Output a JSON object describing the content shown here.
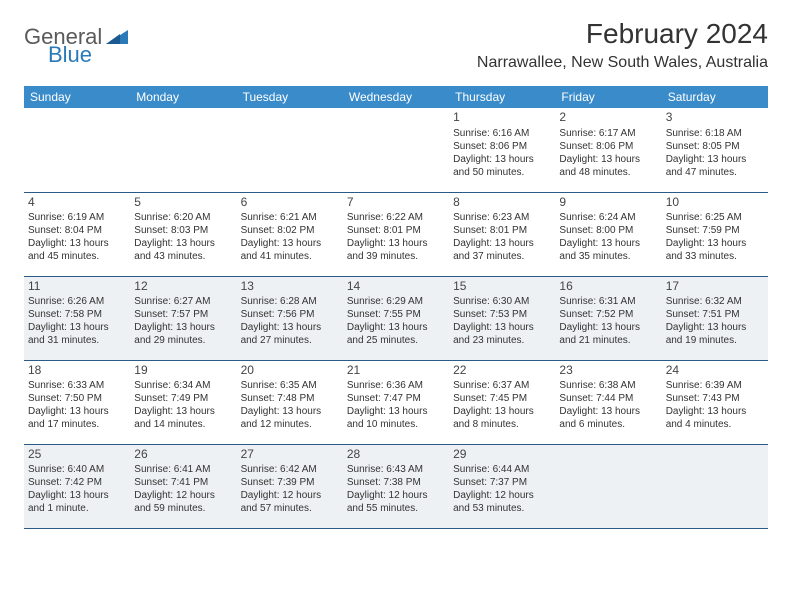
{
  "logo": {
    "part1": "General",
    "part2": "Blue"
  },
  "title": "February 2024",
  "location": "Narrawallee, New South Wales, Australia",
  "colors": {
    "header_bg": "#3a8bc9",
    "header_text": "#ffffff",
    "alt_row_bg": "#eef1f3",
    "rule": "#2a5a8a",
    "logo_accent": "#2a7ab9"
  },
  "day_headers": [
    "Sunday",
    "Monday",
    "Tuesday",
    "Wednesday",
    "Thursday",
    "Friday",
    "Saturday"
  ],
  "weeks": [
    {
      "alt": false,
      "days": [
        null,
        null,
        null,
        null,
        {
          "n": "1",
          "sr": "Sunrise: 6:16 AM",
          "ss": "Sunset: 8:06 PM",
          "d1": "Daylight: 13 hours",
          "d2": "and 50 minutes."
        },
        {
          "n": "2",
          "sr": "Sunrise: 6:17 AM",
          "ss": "Sunset: 8:06 PM",
          "d1": "Daylight: 13 hours",
          "d2": "and 48 minutes."
        },
        {
          "n": "3",
          "sr": "Sunrise: 6:18 AM",
          "ss": "Sunset: 8:05 PM",
          "d1": "Daylight: 13 hours",
          "d2": "and 47 minutes."
        }
      ]
    },
    {
      "alt": false,
      "days": [
        {
          "n": "4",
          "sr": "Sunrise: 6:19 AM",
          "ss": "Sunset: 8:04 PM",
          "d1": "Daylight: 13 hours",
          "d2": "and 45 minutes."
        },
        {
          "n": "5",
          "sr": "Sunrise: 6:20 AM",
          "ss": "Sunset: 8:03 PM",
          "d1": "Daylight: 13 hours",
          "d2": "and 43 minutes."
        },
        {
          "n": "6",
          "sr": "Sunrise: 6:21 AM",
          "ss": "Sunset: 8:02 PM",
          "d1": "Daylight: 13 hours",
          "d2": "and 41 minutes."
        },
        {
          "n": "7",
          "sr": "Sunrise: 6:22 AM",
          "ss": "Sunset: 8:01 PM",
          "d1": "Daylight: 13 hours",
          "d2": "and 39 minutes."
        },
        {
          "n": "8",
          "sr": "Sunrise: 6:23 AM",
          "ss": "Sunset: 8:01 PM",
          "d1": "Daylight: 13 hours",
          "d2": "and 37 minutes."
        },
        {
          "n": "9",
          "sr": "Sunrise: 6:24 AM",
          "ss": "Sunset: 8:00 PM",
          "d1": "Daylight: 13 hours",
          "d2": "and 35 minutes."
        },
        {
          "n": "10",
          "sr": "Sunrise: 6:25 AM",
          "ss": "Sunset: 7:59 PM",
          "d1": "Daylight: 13 hours",
          "d2": "and 33 minutes."
        }
      ]
    },
    {
      "alt": true,
      "days": [
        {
          "n": "11",
          "sr": "Sunrise: 6:26 AM",
          "ss": "Sunset: 7:58 PM",
          "d1": "Daylight: 13 hours",
          "d2": "and 31 minutes."
        },
        {
          "n": "12",
          "sr": "Sunrise: 6:27 AM",
          "ss": "Sunset: 7:57 PM",
          "d1": "Daylight: 13 hours",
          "d2": "and 29 minutes."
        },
        {
          "n": "13",
          "sr": "Sunrise: 6:28 AM",
          "ss": "Sunset: 7:56 PM",
          "d1": "Daylight: 13 hours",
          "d2": "and 27 minutes."
        },
        {
          "n": "14",
          "sr": "Sunrise: 6:29 AM",
          "ss": "Sunset: 7:55 PM",
          "d1": "Daylight: 13 hours",
          "d2": "and 25 minutes."
        },
        {
          "n": "15",
          "sr": "Sunrise: 6:30 AM",
          "ss": "Sunset: 7:53 PM",
          "d1": "Daylight: 13 hours",
          "d2": "and 23 minutes."
        },
        {
          "n": "16",
          "sr": "Sunrise: 6:31 AM",
          "ss": "Sunset: 7:52 PM",
          "d1": "Daylight: 13 hours",
          "d2": "and 21 minutes."
        },
        {
          "n": "17",
          "sr": "Sunrise: 6:32 AM",
          "ss": "Sunset: 7:51 PM",
          "d1": "Daylight: 13 hours",
          "d2": "and 19 minutes."
        }
      ]
    },
    {
      "alt": false,
      "days": [
        {
          "n": "18",
          "sr": "Sunrise: 6:33 AM",
          "ss": "Sunset: 7:50 PM",
          "d1": "Daylight: 13 hours",
          "d2": "and 17 minutes."
        },
        {
          "n": "19",
          "sr": "Sunrise: 6:34 AM",
          "ss": "Sunset: 7:49 PM",
          "d1": "Daylight: 13 hours",
          "d2": "and 14 minutes."
        },
        {
          "n": "20",
          "sr": "Sunrise: 6:35 AM",
          "ss": "Sunset: 7:48 PM",
          "d1": "Daylight: 13 hours",
          "d2": "and 12 minutes."
        },
        {
          "n": "21",
          "sr": "Sunrise: 6:36 AM",
          "ss": "Sunset: 7:47 PM",
          "d1": "Daylight: 13 hours",
          "d2": "and 10 minutes."
        },
        {
          "n": "22",
          "sr": "Sunrise: 6:37 AM",
          "ss": "Sunset: 7:45 PM",
          "d1": "Daylight: 13 hours",
          "d2": "and 8 minutes."
        },
        {
          "n": "23",
          "sr": "Sunrise: 6:38 AM",
          "ss": "Sunset: 7:44 PM",
          "d1": "Daylight: 13 hours",
          "d2": "and 6 minutes."
        },
        {
          "n": "24",
          "sr": "Sunrise: 6:39 AM",
          "ss": "Sunset: 7:43 PM",
          "d1": "Daylight: 13 hours",
          "d2": "and 4 minutes."
        }
      ]
    },
    {
      "alt": true,
      "days": [
        {
          "n": "25",
          "sr": "Sunrise: 6:40 AM",
          "ss": "Sunset: 7:42 PM",
          "d1": "Daylight: 13 hours",
          "d2": "and 1 minute."
        },
        {
          "n": "26",
          "sr": "Sunrise: 6:41 AM",
          "ss": "Sunset: 7:41 PM",
          "d1": "Daylight: 12 hours",
          "d2": "and 59 minutes."
        },
        {
          "n": "27",
          "sr": "Sunrise: 6:42 AM",
          "ss": "Sunset: 7:39 PM",
          "d1": "Daylight: 12 hours",
          "d2": "and 57 minutes."
        },
        {
          "n": "28",
          "sr": "Sunrise: 6:43 AM",
          "ss": "Sunset: 7:38 PM",
          "d1": "Daylight: 12 hours",
          "d2": "and 55 minutes."
        },
        {
          "n": "29",
          "sr": "Sunrise: 6:44 AM",
          "ss": "Sunset: 7:37 PM",
          "d1": "Daylight: 12 hours",
          "d2": "and 53 minutes."
        },
        null,
        null
      ]
    }
  ]
}
